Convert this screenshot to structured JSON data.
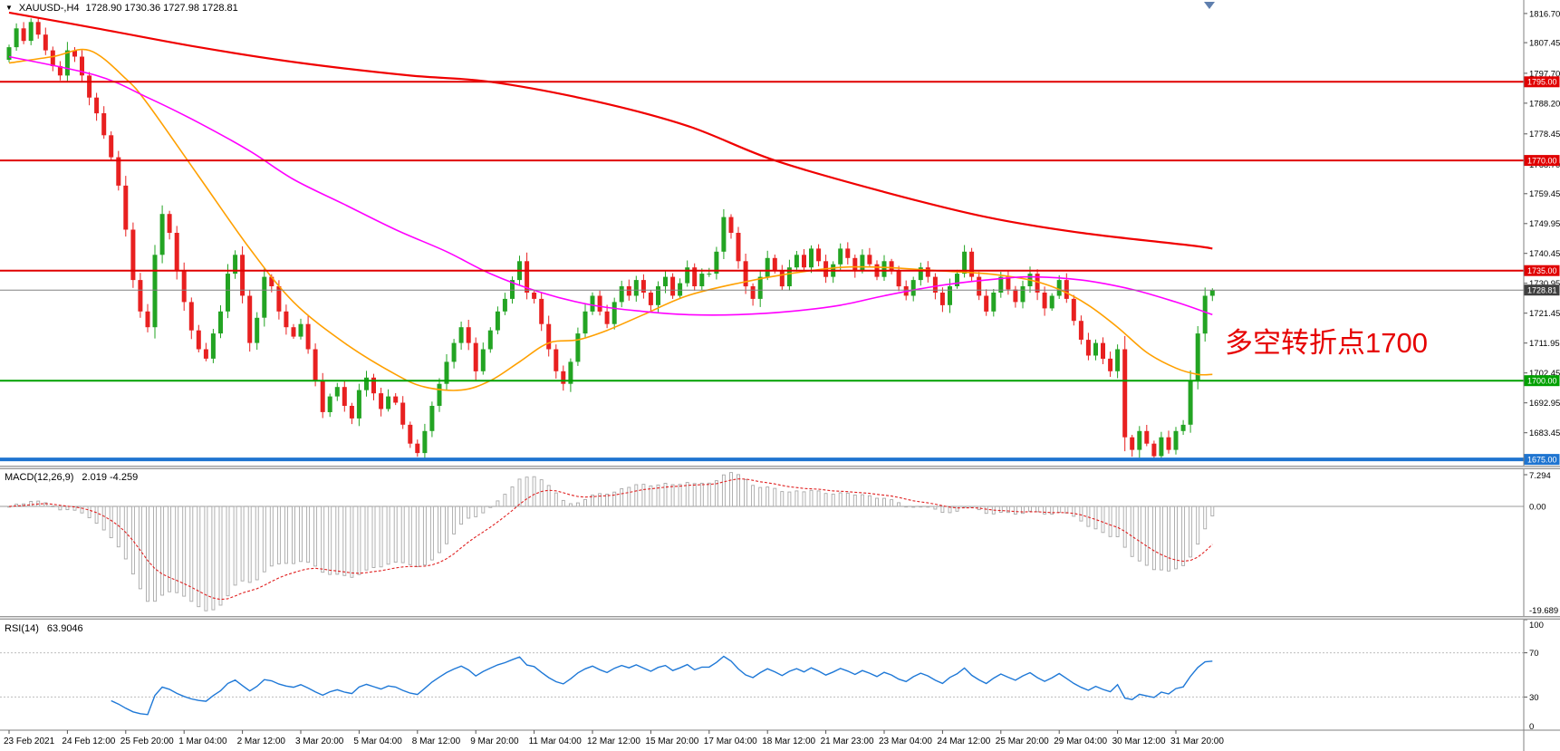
{
  "header": {
    "title": "XAUUSD-,H4",
    "ohlc": "1728.90 1730.36 1727.98 1728.81"
  },
  "annotation": {
    "text": "多空转折点1700",
    "color": "#e60000"
  },
  "panes": {
    "macd": {
      "name": "MACD(12,26,9)",
      "values": "2.019 -4.259",
      "scale_max": "7.294",
      "scale_zero": "0.00",
      "scale_min": "-19.689"
    },
    "rsi": {
      "name": "RSI(14)",
      "value": "63.9046",
      "scale": [
        "100",
        "70",
        "30",
        "0"
      ],
      "levels": [
        70,
        30
      ]
    }
  },
  "price_scale": {
    "ticks": [
      "1816.70",
      "1807.45",
      "1797.70",
      "1788.20",
      "1778.45",
      "1768.70",
      "1759.45",
      "1749.95",
      "1740.45",
      "1730.95",
      "1721.45",
      "1711.95",
      "1702.45",
      "1692.95",
      "1683.45"
    ]
  },
  "time_scale": {
    "label_step": 8,
    "labels": [
      "23 Feb 2021",
      "24 Feb 12:00",
      "25 Feb 20:00",
      "1 Mar 04:00",
      "2 Mar 12:00",
      "3 Mar 20:00",
      "5 Mar 04:00",
      "8 Mar 12:00",
      "9 Mar 20:00",
      "11 Mar 04:00",
      "12 Mar 12:00",
      "15 Mar 20:00",
      "17 Mar 04:00",
      "18 Mar 12:00",
      "21 Mar 23:00",
      "23 Mar 04:00",
      "24 Mar 12:00",
      "25 Mar 20:00",
      "29 Mar 04:00",
      "30 Mar 12:00",
      "31 Mar 20:00"
    ]
  },
  "levels": [
    {
      "price": 1795.0,
      "label": "1795.00",
      "color": "#e00000",
      "line_width": 2
    },
    {
      "price": 1770.0,
      "label": "1770.00",
      "color": "#e00000",
      "line_width": 2
    },
    {
      "price": 1735.0,
      "label": "1735.00",
      "color": "#e00000",
      "line_width": 2
    },
    {
      "price": 1700.0,
      "label": "1700.00",
      "color": "#00a000",
      "line_width": 2
    },
    {
      "price": 1675.0,
      "label": "1675.00",
      "color": "#1e74d0",
      "line_width": 4
    }
  ],
  "bid": {
    "price": 1728.81,
    "label": "1728.81",
    "color": "#3f3f3f"
  },
  "chart_data": {
    "type": "candlestick",
    "symbol": "XAUUSD-",
    "timeframe": "H4",
    "price_range": [
      1673,
      1821
    ],
    "last_candle_ohlc": [
      1728.9,
      1730.36,
      1727.98,
      1728.81
    ],
    "first_open": 1802,
    "closes": [
      1806,
      1812,
      1808,
      1814,
      1810,
      1805,
      1800,
      1797,
      1805,
      1803,
      1797,
      1790,
      1785,
      1778,
      1771,
      1762,
      1748,
      1732,
      1722,
      1717,
      1740,
      1753,
      1747,
      1735,
      1725,
      1716,
      1710,
      1707,
      1715,
      1722,
      1734,
      1740,
      1727,
      1712,
      1720,
      1733,
      1730,
      1722,
      1717,
      1714,
      1718,
      1710,
      1700,
      1690,
      1695,
      1698,
      1692,
      1688,
      1697,
      1701,
      1696,
      1691,
      1695,
      1693,
      1686,
      1680,
      1677,
      1684,
      1692,
      1699,
      1706,
      1712,
      1717,
      1712,
      1703,
      1710,
      1716,
      1722,
      1726,
      1732,
      1738,
      1728,
      1726,
      1718,
      1710,
      1703,
      1699,
      1706,
      1715,
      1722,
      1727,
      1722,
      1718,
      1725,
      1730,
      1727,
      1732,
      1728,
      1724,
      1730,
      1733,
      1727,
      1731,
      1736,
      1730,
      1734,
      1734,
      1741,
      1752,
      1747,
      1738,
      1730,
      1726,
      1733,
      1739,
      1735,
      1730,
      1736,
      1740,
      1736,
      1742,
      1738,
      1733,
      1737,
      1742,
      1739,
      1735,
      1740,
      1737,
      1733,
      1738,
      1735,
      1730,
      1727,
      1732,
      1736,
      1733,
      1728,
      1724,
      1730,
      1734,
      1741,
      1733,
      1727,
      1722,
      1728,
      1733,
      1729,
      1725,
      1730,
      1734,
      1728,
      1723,
      1727,
      1732,
      1726,
      1719,
      1713,
      1708,
      1712,
      1707,
      1703,
      1710,
      1682,
      1678,
      1684,
      1680,
      1676,
      1682,
      1678,
      1684,
      1686,
      1700,
      1715,
      1727,
      1728.8
    ],
    "colors": {
      "bull": "#23a423",
      "bear": "#e82020"
    },
    "overlays": [
      {
        "name": "ma-fast-orange",
        "color": "#ffa000",
        "width": 1.6,
        "points": [
          [
            0,
            1801
          ],
          [
            6,
            1803
          ],
          [
            11,
            1805
          ],
          [
            16,
            1796
          ],
          [
            19,
            1788
          ],
          [
            26,
            1765
          ],
          [
            33,
            1742
          ],
          [
            39,
            1725
          ],
          [
            46,
            1712
          ],
          [
            53,
            1702
          ],
          [
            57,
            1698
          ],
          [
            62,
            1697
          ],
          [
            66,
            1700
          ],
          [
            70,
            1706
          ],
          [
            74,
            1712
          ],
          [
            78,
            1713
          ],
          [
            82,
            1716
          ],
          [
            87,
            1721
          ],
          [
            93,
            1727
          ],
          [
            100,
            1731
          ],
          [
            107,
            1734
          ],
          [
            114,
            1736
          ],
          [
            120,
            1736
          ],
          [
            127,
            1735
          ],
          [
            134,
            1734
          ],
          [
            140,
            1732
          ],
          [
            144,
            1729
          ],
          [
            148,
            1724
          ],
          [
            152,
            1717
          ],
          [
            156,
            1709
          ],
          [
            160,
            1704
          ],
          [
            163,
            1702
          ],
          [
            165,
            1702
          ]
        ]
      },
      {
        "name": "ma-mid-magenta",
        "color": "#ff00ff",
        "width": 1.6,
        "points": [
          [
            0,
            1803
          ],
          [
            12,
            1797
          ],
          [
            19,
            1790
          ],
          [
            26,
            1782
          ],
          [
            33,
            1773
          ],
          [
            39,
            1764
          ],
          [
            46,
            1756
          ],
          [
            53,
            1748
          ],
          [
            60,
            1741
          ],
          [
            66,
            1734
          ],
          [
            73,
            1728
          ],
          [
            80,
            1724
          ],
          [
            87,
            1722
          ],
          [
            93,
            1721
          ],
          [
            100,
            1721
          ],
          [
            107,
            1722
          ],
          [
            114,
            1724
          ],
          [
            120,
            1727
          ],
          [
            127,
            1730
          ],
          [
            134,
            1732
          ],
          [
            140,
            1733
          ],
          [
            147,
            1732
          ],
          [
            154,
            1729
          ],
          [
            160,
            1725
          ],
          [
            165,
            1721
          ]
        ]
      },
      {
        "name": "ma-slow-red",
        "color": "#f00000",
        "width": 2.2,
        "points": [
          [
            0,
            1817
          ],
          [
            12,
            1812
          ],
          [
            26,
            1806
          ],
          [
            40,
            1801
          ],
          [
            55,
            1797
          ],
          [
            66,
            1795
          ],
          [
            80,
            1789
          ],
          [
            93,
            1781
          ],
          [
            105,
            1770
          ],
          [
            120,
            1760
          ],
          [
            134,
            1752
          ],
          [
            147,
            1747
          ],
          [
            162,
            1743
          ],
          [
            165,
            1742
          ]
        ]
      }
    ],
    "indicators": [
      {
        "type": "macd",
        "params": [
          12,
          26,
          9
        ],
        "current": [
          2.019,
          -4.259
        ],
        "scale": [
          -19.689,
          7.294
        ]
      },
      {
        "type": "rsi",
        "params": [
          14
        ],
        "current": 63.9046,
        "scale": [
          0,
          100
        ],
        "levels": [
          70,
          30
        ]
      }
    ]
  }
}
